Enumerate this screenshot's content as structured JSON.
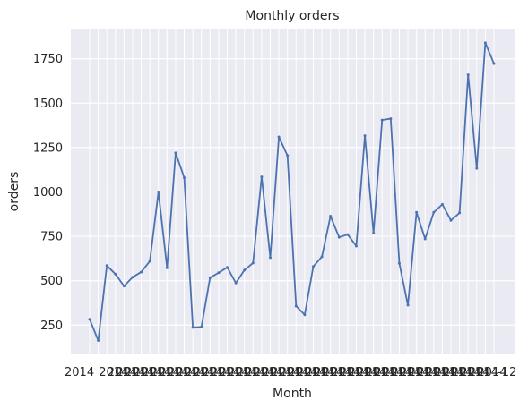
{
  "chart_data": {
    "type": "line",
    "title": "Monthly orders",
    "xlabel": "Month",
    "ylabel": "orders",
    "grid": true,
    "ylim": [
      90,
      1920
    ],
    "yticks": [
      250,
      500,
      750,
      1000,
      1250,
      1500,
      1750
    ],
    "x_tick_note": "tick labels overlap into an unreadable band; first visible fragment '2014', last '12'",
    "x_first_tick_fragment": "2014",
    "x_last_tick_fragment": "12",
    "series": [
      {
        "color": "#4c72b0",
        "values": [
          283,
          163,
          585,
          537,
          470,
          520,
          549,
          610,
          1000,
          573,
          1220,
          1080,
          237,
          240,
          517,
          545,
          575,
          487,
          560,
          600,
          1085,
          630,
          1310,
          1205,
          357,
          308,
          580,
          635,
          864,
          745,
          760,
          695,
          1317,
          768,
          1405,
          1413,
          598,
          362,
          885,
          735,
          885,
          930,
          840,
          882,
          1660,
          1133,
          1840,
          1723
        ]
      }
    ]
  },
  "colors": {
    "plot_background": "#eaeaf2",
    "grid": "#ffffff",
    "line": "#4c72b0"
  }
}
